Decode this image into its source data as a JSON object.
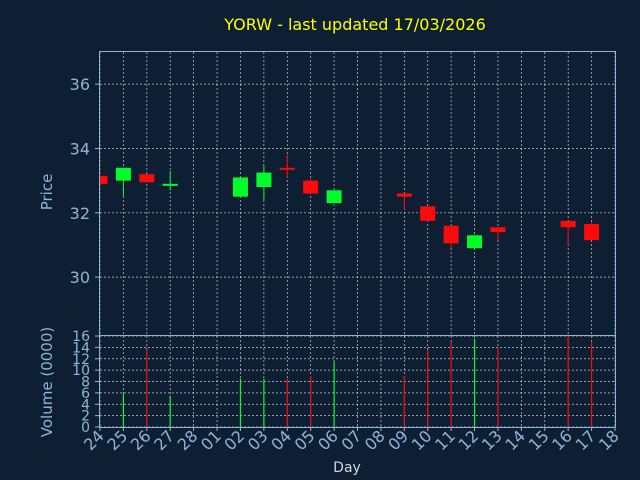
{
  "chart_data": [
    {
      "type": "candlestick",
      "title": "YORW - last updated 17/03/2026",
      "xlabel": "Day",
      "ylabel": "Price",
      "ylim": [
        28.2,
        37.0
      ],
      "yticks": [
        30,
        32,
        34,
        36
      ],
      "grid": true,
      "categories": [
        "24",
        "25",
        "26",
        "27",
        "28",
        "01",
        "02",
        "03",
        "04",
        "05",
        "06",
        "07",
        "08",
        "09",
        "10",
        "11",
        "12",
        "13",
        "14",
        "15",
        "16",
        "17",
        "18"
      ],
      "candles": [
        {
          "x": "24",
          "open": 33.15,
          "high": 33.15,
          "low": 32.9,
          "close": 32.9
        },
        {
          "x": "25",
          "open": 33.0,
          "high": 33.4,
          "low": 32.5,
          "close": 33.4
        },
        {
          "x": "26",
          "open": 33.2,
          "high": 33.2,
          "low": 32.95,
          "close": 32.95
        },
        {
          "x": "27",
          "open": 32.85,
          "high": 33.3,
          "low": 32.7,
          "close": 32.9
        },
        {
          "x": "02",
          "open": 32.5,
          "high": 33.1,
          "low": 32.5,
          "close": 33.1
        },
        {
          "x": "03",
          "open": 32.8,
          "high": 33.45,
          "low": 32.4,
          "close": 33.25
        },
        {
          "x": "04",
          "open": 33.4,
          "high": 33.8,
          "low": 33.1,
          "close": 33.35
        },
        {
          "x": "05",
          "open": 33.0,
          "high": 33.05,
          "low": 32.6,
          "close": 32.6
        },
        {
          "x": "06",
          "open": 32.3,
          "high": 32.7,
          "low": 32.3,
          "close": 32.7
        },
        {
          "x": "09",
          "open": 32.6,
          "high": 32.6,
          "low": 32.1,
          "close": 32.5
        },
        {
          "x": "10",
          "open": 32.2,
          "high": 32.2,
          "low": 31.75,
          "close": 31.75
        },
        {
          "x": "11",
          "open": 31.6,
          "high": 31.6,
          "low": 30.9,
          "close": 31.05
        },
        {
          "x": "12",
          "open": 30.9,
          "high": 31.3,
          "low": 30.85,
          "close": 31.3
        },
        {
          "x": "13",
          "open": 31.55,
          "high": 31.55,
          "low": 31.15,
          "close": 31.4
        },
        {
          "x": "16",
          "open": 31.75,
          "high": 31.75,
          "low": 31.0,
          "close": 31.55
        },
        {
          "x": "17",
          "open": 31.65,
          "high": 31.7,
          "low": 31.15,
          "close": 31.15
        }
      ]
    },
    {
      "type": "bar",
      "ylabel": "Volume (0000)",
      "ylim": [
        0,
        16
      ],
      "yticks": [
        0,
        2,
        4,
        6,
        8,
        10,
        12,
        14,
        16
      ],
      "grid": true,
      "volumes": [
        {
          "x": "25",
          "value": 6,
          "direction": "up"
        },
        {
          "x": "26",
          "value": 13.5,
          "direction": "down"
        },
        {
          "x": "27",
          "value": 5.5,
          "direction": "up"
        },
        {
          "x": "02",
          "value": 8.5,
          "direction": "up"
        },
        {
          "x": "03",
          "value": 8.5,
          "direction": "up"
        },
        {
          "x": "04",
          "value": 8.5,
          "direction": "down"
        },
        {
          "x": "05",
          "value": 9,
          "direction": "down"
        },
        {
          "x": "06",
          "value": 11.5,
          "direction": "up"
        },
        {
          "x": "09",
          "value": 9,
          "direction": "down"
        },
        {
          "x": "10",
          "value": 13.5,
          "direction": "down"
        },
        {
          "x": "11",
          "value": 15,
          "direction": "down"
        },
        {
          "x": "12",
          "value": 15.5,
          "direction": "up"
        },
        {
          "x": "13",
          "value": 14,
          "direction": "down"
        },
        {
          "x": "16",
          "value": 16,
          "direction": "down"
        },
        {
          "x": "17",
          "value": 15,
          "direction": "down"
        }
      ]
    }
  ],
  "colors": {
    "background": "#0f1f33",
    "up": "#00ff2a",
    "down": "#ff0a0a",
    "axis": "#8eb4d9",
    "title": "#ffff00"
  }
}
